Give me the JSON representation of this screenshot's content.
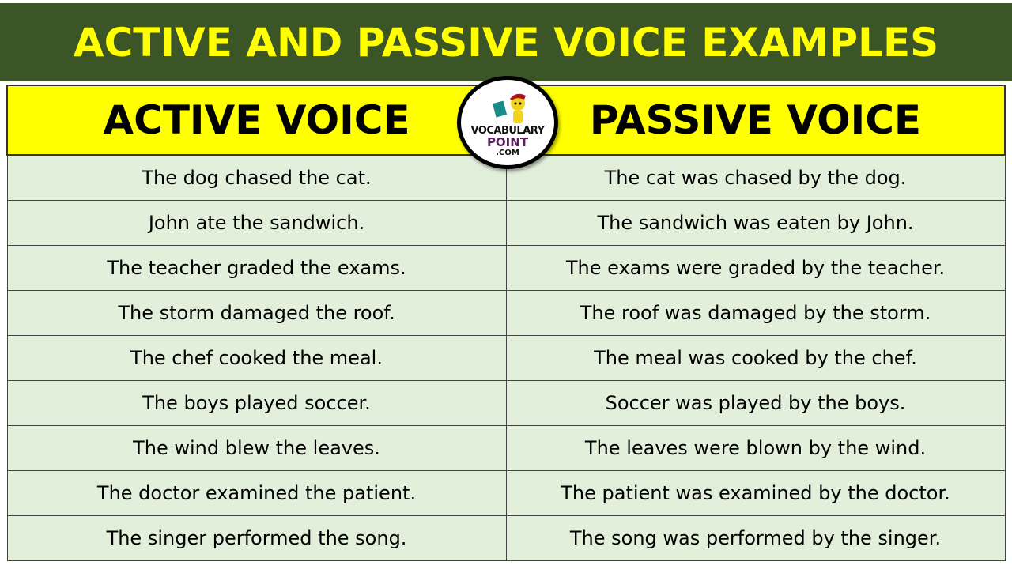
{
  "title": "ACTIVE AND PASSIVE VOICE EXAMPLES",
  "headers": [
    "ACTIVE VOICE",
    "PASSIVE VOICE"
  ],
  "logo": {
    "line1": "VOCABULARY",
    "line2": "POINT",
    "line3": ".COM"
  },
  "colors": {
    "banner": "#3b5527",
    "title": "#ffff00",
    "header": "#ffff00",
    "cell": "#e2efda"
  },
  "rows": [
    [
      "The dog chased the cat.",
      "The cat was chased by the dog."
    ],
    [
      "John ate the sandwich.",
      "The sandwich was eaten by John."
    ],
    [
      "The teacher graded the exams.",
      "The exams were graded by the teacher."
    ],
    [
      "The storm damaged the roof.",
      "The roof was damaged by the storm."
    ],
    [
      "The chef cooked the meal.",
      "The meal was cooked by the chef."
    ],
    [
      "The boys played soccer.",
      "Soccer was played by the boys."
    ],
    [
      "The wind blew the leaves.",
      "The leaves were blown by the wind."
    ],
    [
      "The doctor examined the patient.",
      "The patient was examined by the doctor."
    ],
    [
      "The singer performed the song.",
      "The song was performed by the singer."
    ]
  ]
}
